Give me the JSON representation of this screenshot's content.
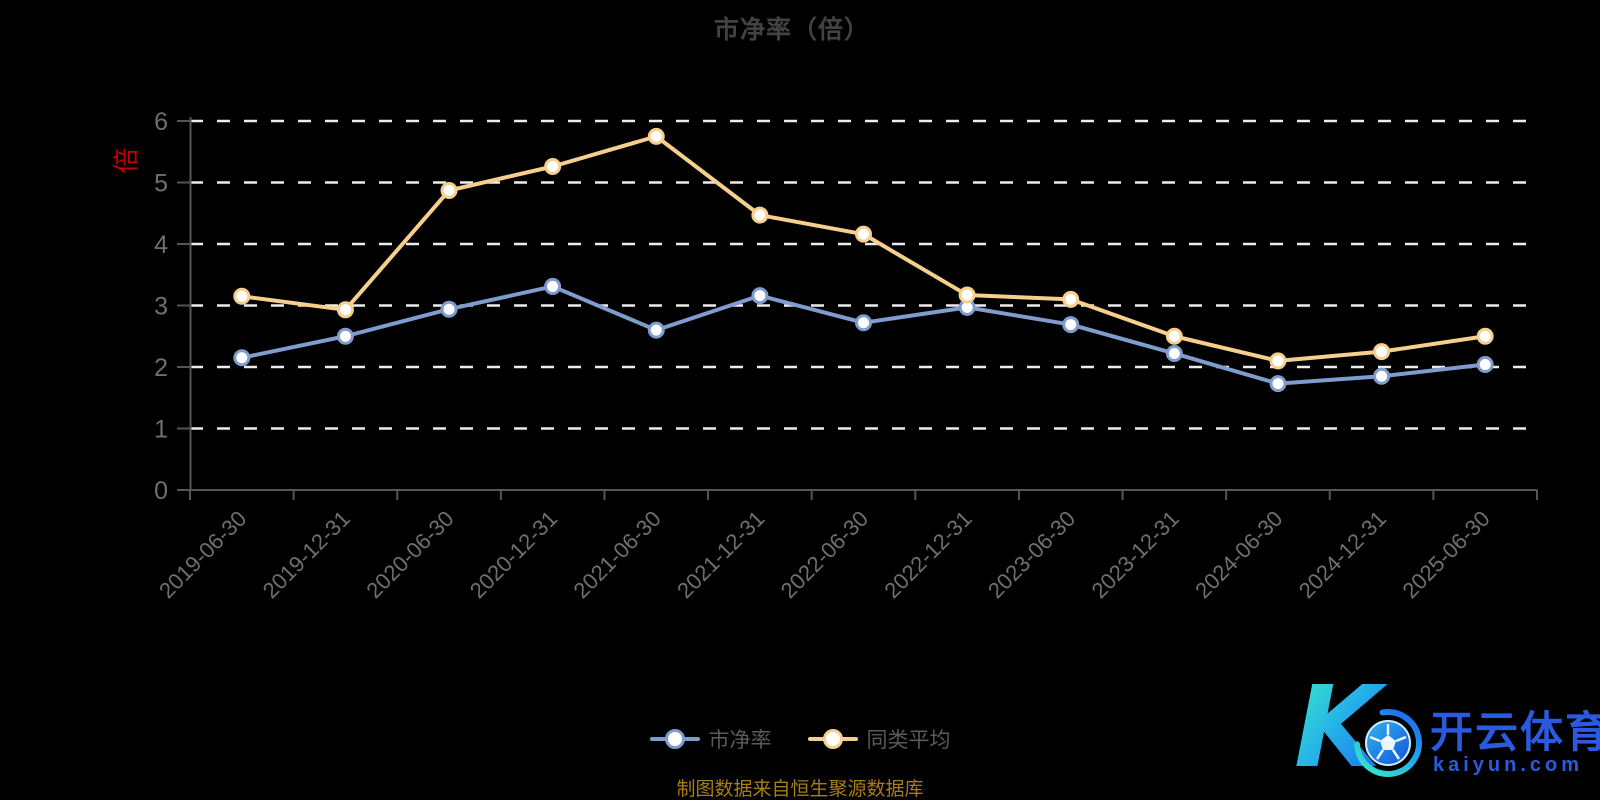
{
  "page": {
    "background": "#000000"
  },
  "chart_data": {
    "type": "line",
    "title": "市净率（倍）",
    "y_axis_name": "倍",
    "categories": [
      "2019-06-30",
      "2019-12-31",
      "2020-06-30",
      "2020-12-31",
      "2021-06-30",
      "2021-12-31",
      "2022-06-30",
      "2022-12-31",
      "2023-06-30",
      "2023-12-31",
      "2024-06-30",
      "2024-12-31",
      "2025-06-30"
    ],
    "series": [
      {
        "name": "市净率",
        "color": "#7e9cce",
        "values": [
          2.15,
          2.5,
          2.94,
          3.31,
          2.6,
          3.16,
          2.72,
          2.97,
          2.69,
          2.22,
          1.73,
          1.85,
          2.04
        ]
      },
      {
        "name": "同类平均",
        "color": "#f6cf8d",
        "values": [
          3.15,
          2.93,
          4.87,
          5.26,
          5.75,
          4.47,
          4.16,
          3.17,
          3.1,
          2.5,
          2.1,
          2.25,
          2.5
        ]
      }
    ],
    "ylim": [
      0,
      6
    ],
    "y_ticks": [
      0,
      1,
      2,
      3,
      4,
      5,
      6
    ],
    "xlabel": "",
    "ylabel": "倍",
    "x_label_rotation": -45,
    "grid": "horizontal dashed lines on, values 1-6",
    "legend_position": "bottom-center",
    "marker_style": "circle, white fill, series-color ring"
  },
  "footer": {
    "source_note": "制图数据来自恒生聚源数据库"
  },
  "watermark": {
    "brand": "开云体育",
    "domain": "kaiyun.com",
    "k_letter": "K"
  },
  "colors": {
    "background": "#000000",
    "title": "#424242",
    "axis_line": "#555555",
    "axis_label": "#6f6f6f",
    "grid_line": "#ececec",
    "legend_text": "#5a5a5a",
    "source_note": "#a67e18",
    "y_axis_name": "#c40000",
    "series_pb_ratio": "#7e9cce",
    "series_peer_average": "#f6cf8d",
    "watermark_blue": "#2a5ae0"
  }
}
